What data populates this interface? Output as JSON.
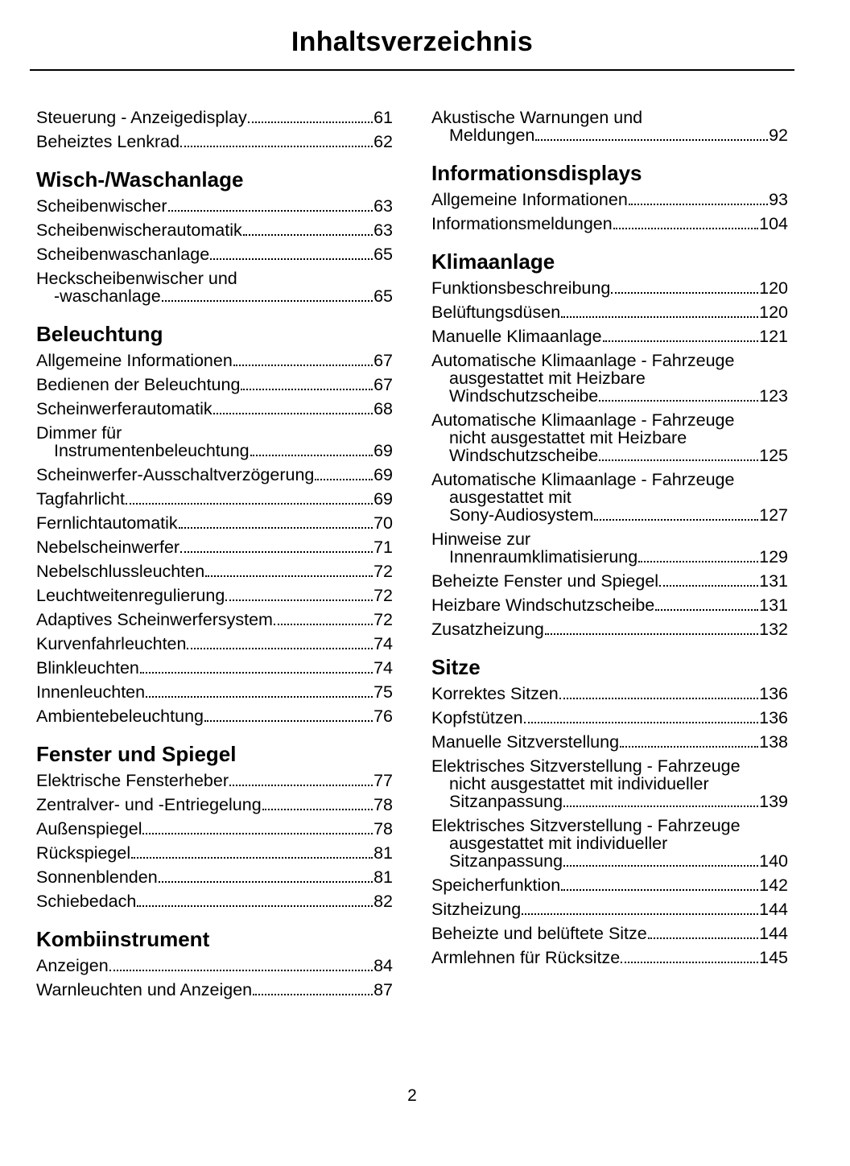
{
  "title": "Inhaltsverzeichnis",
  "page_number": "2",
  "columns": [
    [
      {
        "type": "entry",
        "lines": [
          "Steuerung - Anzeigedisplay"
        ],
        "page": "61"
      },
      {
        "type": "entry",
        "lines": [
          "Beheiztes  Lenkrad"
        ],
        "page": "62"
      },
      {
        "type": "heading",
        "text": "Wisch-/Waschanlage"
      },
      {
        "type": "entry",
        "lines": [
          "Scheibenwischer"
        ],
        "page": "63"
      },
      {
        "type": "entry",
        "lines": [
          "Scheibenwischerautomatik"
        ],
        "page": "63"
      },
      {
        "type": "entry",
        "lines": [
          "Scheibenwaschanlage"
        ],
        "page": "65"
      },
      {
        "type": "entry",
        "lines": [
          "Heckscheibenwischer und",
          "-waschanlage"
        ],
        "page": "65"
      },
      {
        "type": "heading",
        "text": "Beleuchtung"
      },
      {
        "type": "entry",
        "lines": [
          "Allgemeine  Informationen"
        ],
        "page": "67"
      },
      {
        "type": "entry",
        "lines": [
          "Bedienen der Beleuchtung"
        ],
        "page": "67"
      },
      {
        "type": "entry",
        "lines": [
          "Scheinwerferautomatik"
        ],
        "page": "68"
      },
      {
        "type": "entry",
        "lines": [
          "Dimmer für",
          "Instrumentenbeleuchtung"
        ],
        "page": "69"
      },
      {
        "type": "entry",
        "lines": [
          "Scheinwerfer-Ausschaltverzögerung"
        ],
        "page": "69"
      },
      {
        "type": "entry",
        "lines": [
          "Tagfahrlicht"
        ],
        "page": "69"
      },
      {
        "type": "entry",
        "lines": [
          "Fernlichtautomatik"
        ],
        "page": "70"
      },
      {
        "type": "entry",
        "lines": [
          "Nebelscheinwerfer"
        ],
        "page": "71"
      },
      {
        "type": "entry",
        "lines": [
          "Nebelschlussleuchten"
        ],
        "page": "72"
      },
      {
        "type": "entry",
        "lines": [
          "Leuchtweitenregulierung"
        ],
        "page": "72"
      },
      {
        "type": "entry",
        "lines": [
          "Adaptives  Scheinwerfersystem"
        ],
        "page": "72"
      },
      {
        "type": "entry",
        "lines": [
          "Kurvenfahrleuchten"
        ],
        "page": "74"
      },
      {
        "type": "entry",
        "lines": [
          "Blinkleuchten"
        ],
        "page": "74"
      },
      {
        "type": "entry",
        "lines": [
          "Innenleuchten"
        ],
        "page": "75"
      },
      {
        "type": "entry",
        "lines": [
          "Ambientebeleuchtung"
        ],
        "page": "76"
      },
      {
        "type": "heading",
        "text": "Fenster und Spiegel"
      },
      {
        "type": "entry",
        "lines": [
          "Elektrische  Fensterheber"
        ],
        "page": "77"
      },
      {
        "type": "entry",
        "lines": [
          "Zentralver- und -Entriegelung"
        ],
        "page": "78"
      },
      {
        "type": "entry",
        "lines": [
          "Außenspiegel"
        ],
        "page": "78"
      },
      {
        "type": "entry",
        "lines": [
          "Rückspiegel"
        ],
        "page": "81"
      },
      {
        "type": "entry",
        "lines": [
          "Sonnenblenden"
        ],
        "page": "81"
      },
      {
        "type": "entry",
        "lines": [
          "Schiebedach"
        ],
        "page": "82"
      },
      {
        "type": "heading",
        "text": "Kombiinstrument"
      },
      {
        "type": "entry",
        "lines": [
          "Anzeigen"
        ],
        "page": "84"
      },
      {
        "type": "entry",
        "lines": [
          "Warnleuchten und Anzeigen"
        ],
        "page": "87"
      }
    ],
    [
      {
        "type": "entry",
        "lines": [
          "Akustische Warnungen und",
          "Meldungen"
        ],
        "page": "92"
      },
      {
        "type": "heading",
        "text": "Informationsdisplays"
      },
      {
        "type": "entry",
        "lines": [
          "Allgemeine Informationen"
        ],
        "page": "93"
      },
      {
        "type": "entry",
        "lines": [
          "Informationsmeldungen"
        ],
        "page": "104"
      },
      {
        "type": "heading",
        "text": "Klimaanlage"
      },
      {
        "type": "entry",
        "lines": [
          "Funktionsbeschreibung"
        ],
        "page": "120"
      },
      {
        "type": "entry",
        "lines": [
          "Belüftungsdüsen"
        ],
        "page": "120"
      },
      {
        "type": "entry",
        "lines": [
          "Manuelle  Klimaanlage"
        ],
        "page": "121"
      },
      {
        "type": "entry",
        "lines": [
          "Automatische Klimaanlage - Fahrzeuge",
          "ausgestattet mit Heizbare",
          "Windschutzscheibe"
        ],
        "page": "123"
      },
      {
        "type": "entry",
        "lines": [
          "Automatische Klimaanlage - Fahrzeuge",
          "nicht ausgestattet mit Heizbare",
          "Windschutzscheibe"
        ],
        "page": "125"
      },
      {
        "type": "entry",
        "lines": [
          "Automatische Klimaanlage - Fahrzeuge",
          "ausgestattet mit",
          "Sony-Audiosystem"
        ],
        "page": "127"
      },
      {
        "type": "entry",
        "lines": [
          "Hinweise zur",
          "Innenraumklimatisierung"
        ],
        "page": "129"
      },
      {
        "type": "entry",
        "lines": [
          "Beheizte Fenster und Spiegel"
        ],
        "page": "131"
      },
      {
        "type": "entry",
        "lines": [
          "Heizbare  Windschutzscheibe"
        ],
        "page": "131"
      },
      {
        "type": "entry",
        "lines": [
          "Zusatzheizung"
        ],
        "page": "132"
      },
      {
        "type": "heading",
        "text": "Sitze"
      },
      {
        "type": "entry",
        "lines": [
          "Korrektes  Sitzen"
        ],
        "page": "136"
      },
      {
        "type": "entry",
        "lines": [
          "Kopfstützen"
        ],
        "page": "136"
      },
      {
        "type": "entry",
        "lines": [
          "Manuelle  Sitzverstellung"
        ],
        "page": "138"
      },
      {
        "type": "entry",
        "lines": [
          "Elektrisches Sitzverstellung - Fahrzeuge",
          "nicht ausgestattet mit individueller",
          "Sitzanpassung"
        ],
        "page": "139"
      },
      {
        "type": "entry",
        "lines": [
          "Elektrisches Sitzverstellung - Fahrzeuge",
          "ausgestattet mit individueller",
          "Sitzanpassung"
        ],
        "page": "140"
      },
      {
        "type": "entry",
        "lines": [
          "Speicherfunktion"
        ],
        "page": "142"
      },
      {
        "type": "entry",
        "lines": [
          "Sitzheizung"
        ],
        "page": "144"
      },
      {
        "type": "entry",
        "lines": [
          "Beheizte und belüftete Sitze"
        ],
        "page": "144"
      },
      {
        "type": "entry",
        "lines": [
          "Armlehnen für Rücksitze"
        ],
        "page": "145"
      }
    ]
  ]
}
